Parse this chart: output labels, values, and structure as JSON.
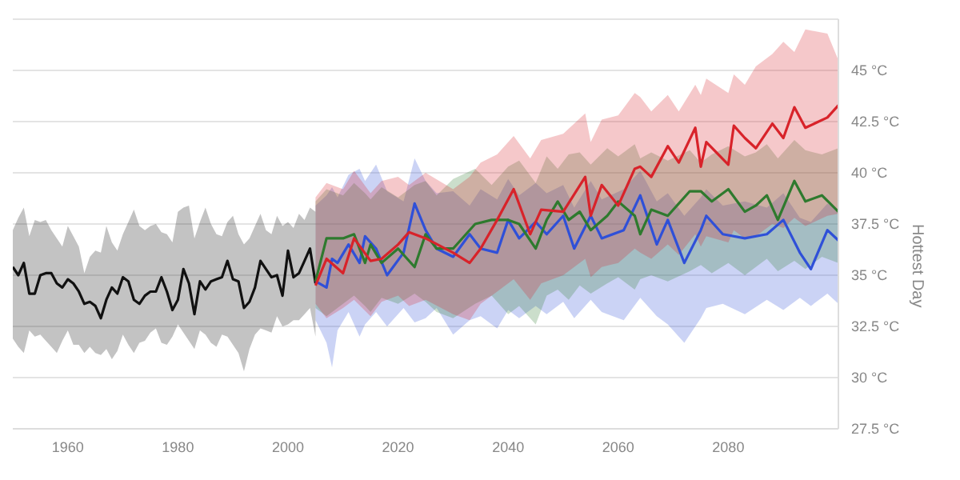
{
  "chart_data": {
    "type": "line",
    "ylabel": "Hottest Day",
    "xlim": [
      1950,
      2100
    ],
    "xticks": [
      1960,
      1980,
      2000,
      2020,
      2040,
      2060,
      2080
    ],
    "ylim": [
      27.5,
      47.5
    ],
    "yticks": [
      {
        "value": 27.5,
        "label": "27.5 °C"
      },
      {
        "value": 30,
        "label": "30 °C"
      },
      {
        "value": 32.5,
        "label": "32.5 °C"
      },
      {
        "value": 35,
        "label": "35 °C"
      },
      {
        "value": 37.5,
        "label": "37.5 °C"
      },
      {
        "value": 40,
        "label": "40 °C"
      },
      {
        "value": 42.5,
        "label": "42.5 °C"
      },
      {
        "value": 45,
        "label": "45 °C"
      }
    ],
    "grid": "y",
    "legend": false,
    "marker": "none",
    "line_style": "solid",
    "series": [
      {
        "color": "#111111",
        "x": [
          1950,
          1951,
          1952,
          1953,
          1954,
          1955,
          1956,
          1957,
          1958,
          1959,
          1960,
          1961,
          1962,
          1963,
          1964,
          1965,
          1966,
          1967,
          1968,
          1969,
          1970,
          1971,
          1972,
          1973,
          1974,
          1975,
          1976,
          1977,
          1978,
          1979,
          1980,
          1981,
          1982,
          1983,
          1984,
          1985,
          1986,
          1987,
          1988,
          1989,
          1990,
          1991,
          1992,
          1993,
          1994,
          1995,
          1996,
          1997,
          1998,
          1999,
          2000,
          2001,
          2002,
          2003,
          2004,
          2005
        ],
        "values": [
          35.4,
          35.0,
          35.6,
          34.1,
          34.1,
          35.0,
          35.1,
          35.1,
          34.6,
          34.4,
          34.8,
          34.6,
          34.2,
          33.6,
          33.7,
          33.5,
          32.9,
          33.8,
          34.4,
          34.1,
          34.9,
          34.7,
          33.8,
          33.6,
          34.0,
          34.2,
          34.2,
          34.9,
          34.2,
          33.3,
          33.8,
          35.3,
          34.6,
          33.1,
          34.7,
          34.3,
          34.7,
          34.8,
          34.9,
          35.7,
          34.8,
          34.7,
          33.4,
          33.7,
          34.4,
          35.7,
          35.3,
          34.9,
          35.0,
          34.0,
          36.2,
          34.9,
          35.1,
          35.7,
          36.3,
          34.6
        ],
        "upper": [
          37.2,
          37.8,
          38.3,
          36.9,
          37.7,
          37.6,
          37.7,
          37.2,
          36.8,
          36.4,
          37.4,
          36.9,
          36.4,
          35.1,
          35.9,
          36.2,
          36.1,
          37.4,
          36.6,
          36.2,
          37.0,
          37.6,
          38.2,
          37.4,
          37.2,
          37.4,
          37.5,
          37.1,
          37.0,
          36.6,
          38.1,
          38.3,
          38.4,
          36.8,
          37.6,
          38.3,
          37.5,
          37.0,
          36.9,
          37.6,
          37.9,
          37.0,
          36.5,
          36.8,
          37.4,
          38.0,
          37.2,
          37.0,
          37.9,
          37.4,
          37.6,
          37.3,
          38.0,
          37.7,
          38.3,
          38.1
        ],
        "lower": [
          31.9,
          31.5,
          31.2,
          32.3,
          32.0,
          32.1,
          31.8,
          31.5,
          31.2,
          31.8,
          32.3,
          31.6,
          31.6,
          31.2,
          31.5,
          31.2,
          31.1,
          31.4,
          30.9,
          31.3,
          32.1,
          31.6,
          31.2,
          31.7,
          31.8,
          32.2,
          32.4,
          31.7,
          31.6,
          32.0,
          32.6,
          32.2,
          31.8,
          31.4,
          32.3,
          32.1,
          31.7,
          31.5,
          32.1,
          32.0,
          31.6,
          31.2,
          30.3,
          31.4,
          32.1,
          32.4,
          32.3,
          32.2,
          33.0,
          32.5,
          32.6,
          32.8,
          32.8,
          33.1,
          33.4,
          32.0
        ]
      },
      {
        "color": "#2f50d8",
        "x": [
          2005,
          2007,
          2008,
          2009,
          2011,
          2013,
          2014,
          2016,
          2018,
          2021,
          2023,
          2025,
          2027,
          2030,
          2033,
          2035,
          2038,
          2040,
          2042,
          2045,
          2047,
          2050,
          2052,
          2055,
          2057,
          2061,
          2064,
          2067,
          2069,
          2072,
          2075,
          2076,
          2079,
          2083,
          2087,
          2090,
          2093,
          2095,
          2098,
          2100
        ],
        "values": [
          34.7,
          34.4,
          35.8,
          35.6,
          36.5,
          35.6,
          36.9,
          36.3,
          35.0,
          36.1,
          38.5,
          37.2,
          36.3,
          35.9,
          37.0,
          36.3,
          36.1,
          37.7,
          36.8,
          37.6,
          37.0,
          37.9,
          36.3,
          37.9,
          36.8,
          37.2,
          38.9,
          36.5,
          37.7,
          35.6,
          37.2,
          37.9,
          37.0,
          36.8,
          37.0,
          37.7,
          36.1,
          35.3,
          37.2,
          36.7
        ],
        "upper": [
          38.4,
          38.9,
          39.3,
          38.8,
          39.9,
          40.2,
          39.6,
          40.4,
          39.1,
          38.6,
          40.7,
          39.6,
          39.0,
          39.1,
          38.4,
          39.2,
          38.7,
          39.7,
          38.9,
          39.5,
          39.0,
          39.4,
          38.3,
          39.6,
          38.7,
          39.2,
          40.1,
          38.6,
          39.0,
          37.9,
          38.8,
          39.2,
          38.4,
          38.6,
          38.3,
          39.0,
          37.8,
          37.6,
          38.5,
          38.2
        ],
        "lower": [
          32.8,
          31.7,
          30.5,
          32.3,
          33.2,
          32.0,
          32.6,
          33.2,
          32.5,
          33.4,
          32.7,
          32.9,
          33.4,
          32.1,
          32.8,
          33.0,
          32.4,
          33.3,
          32.9,
          33.5,
          33.1,
          33.7,
          32.9,
          33.8,
          33.2,
          32.8,
          33.9,
          33.0,
          32.6,
          31.7,
          32.9,
          33.4,
          33.6,
          33.1,
          33.8,
          33.3,
          33.9,
          33.5,
          34.1,
          33.6
        ]
      },
      {
        "color": "#2e7a2e",
        "x": [
          2005,
          2007,
          2010,
          2012,
          2014,
          2015,
          2017,
          2020,
          2023,
          2025,
          2027,
          2030,
          2034,
          2037,
          2040,
          2042,
          2045,
          2047,
          2049,
          2051,
          2053,
          2055,
          2058,
          2060,
          2063,
          2064,
          2066,
          2069,
          2073,
          2075,
          2077,
          2080,
          2083,
          2085,
          2087,
          2089,
          2092,
          2094,
          2097,
          2100
        ],
        "values": [
          34.7,
          36.8,
          36.8,
          37.0,
          35.6,
          36.5,
          35.6,
          36.3,
          35.4,
          37.0,
          36.3,
          36.3,
          37.5,
          37.7,
          37.7,
          37.5,
          36.3,
          37.7,
          38.6,
          37.7,
          38.1,
          37.2,
          37.9,
          38.6,
          37.9,
          37.0,
          38.2,
          37.9,
          39.1,
          39.1,
          38.6,
          39.2,
          38.1,
          38.4,
          38.9,
          37.7,
          39.6,
          38.6,
          38.9,
          38.1
        ],
        "upper": [
          38.6,
          39.2,
          38.9,
          39.5,
          39.0,
          38.7,
          39.3,
          38.8,
          39.4,
          39.6,
          38.9,
          39.7,
          40.2,
          39.4,
          40.3,
          40.6,
          39.5,
          40.8,
          40.2,
          40.9,
          41.0,
          40.4,
          41.2,
          40.8,
          41.4,
          40.7,
          41.0,
          40.6,
          41.1,
          40.5,
          40.9,
          41.3,
          40.8,
          41.0,
          41.4,
          40.7,
          41.6,
          41.1,
          40.9,
          41.2
        ],
        "lower": [
          33.4,
          33.0,
          33.6,
          34.0,
          33.5,
          33.2,
          33.9,
          33.6,
          34.1,
          33.7,
          33.2,
          32.9,
          33.6,
          34.0,
          33.1,
          33.5,
          32.6,
          34.0,
          34.3,
          33.8,
          34.5,
          34.1,
          34.6,
          34.9,
          34.3,
          34.8,
          35.0,
          34.7,
          35.2,
          35.5,
          35.1,
          35.6,
          35.0,
          35.4,
          35.8,
          35.2,
          35.7,
          35.3,
          35.9,
          35.6
        ]
      },
      {
        "color": "#d8232a",
        "x": [
          2005,
          2007,
          2010,
          2012,
          2015,
          2017,
          2020,
          2022,
          2025,
          2030,
          2033,
          2035,
          2038,
          2041,
          2044,
          2046,
          2050,
          2054,
          2055,
          2057,
          2060,
          2063,
          2064,
          2066,
          2069,
          2071,
          2074,
          2075,
          2076,
          2080,
          2081,
          2083,
          2085,
          2088,
          2090,
          2092,
          2094,
          2098,
          2100
        ],
        "values": [
          34.5,
          35.8,
          35.1,
          36.8,
          35.7,
          35.8,
          36.5,
          37.1,
          36.8,
          36.1,
          35.6,
          36.3,
          37.7,
          39.2,
          37.0,
          38.2,
          38.1,
          39.8,
          37.9,
          39.4,
          38.4,
          40.2,
          40.3,
          39.8,
          41.3,
          40.5,
          42.2,
          40.3,
          41.5,
          40.4,
          42.3,
          41.7,
          41.2,
          42.4,
          41.7,
          43.2,
          42.2,
          42.7,
          43.3
        ],
        "upper": [
          38.8,
          39.5,
          39.2,
          40.1,
          39.0,
          39.6,
          39.8,
          39.4,
          40.0,
          39.2,
          39.8,
          40.5,
          40.9,
          41.8,
          40.7,
          41.6,
          41.9,
          42.9,
          41.5,
          42.6,
          42.8,
          43.9,
          43.7,
          43.0,
          43.8,
          43.0,
          44.3,
          43.8,
          44.6,
          43.9,
          44.8,
          44.3,
          45.2,
          45.8,
          46.4,
          45.9,
          47.0,
          46.8,
          45.5
        ],
        "lower": [
          33.6,
          32.9,
          33.4,
          33.8,
          33.0,
          33.7,
          34.0,
          33.5,
          33.8,
          33.1,
          32.8,
          33.6,
          34.2,
          34.8,
          33.8,
          34.6,
          35.0,
          35.8,
          34.9,
          35.4,
          35.6,
          36.3,
          36.1,
          35.8,
          36.5,
          36.0,
          37.0,
          36.4,
          36.9,
          36.6,
          37.2,
          36.8,
          36.9,
          37.5,
          37.3,
          37.8,
          37.4,
          37.9,
          38.0
        ]
      }
    ]
  }
}
